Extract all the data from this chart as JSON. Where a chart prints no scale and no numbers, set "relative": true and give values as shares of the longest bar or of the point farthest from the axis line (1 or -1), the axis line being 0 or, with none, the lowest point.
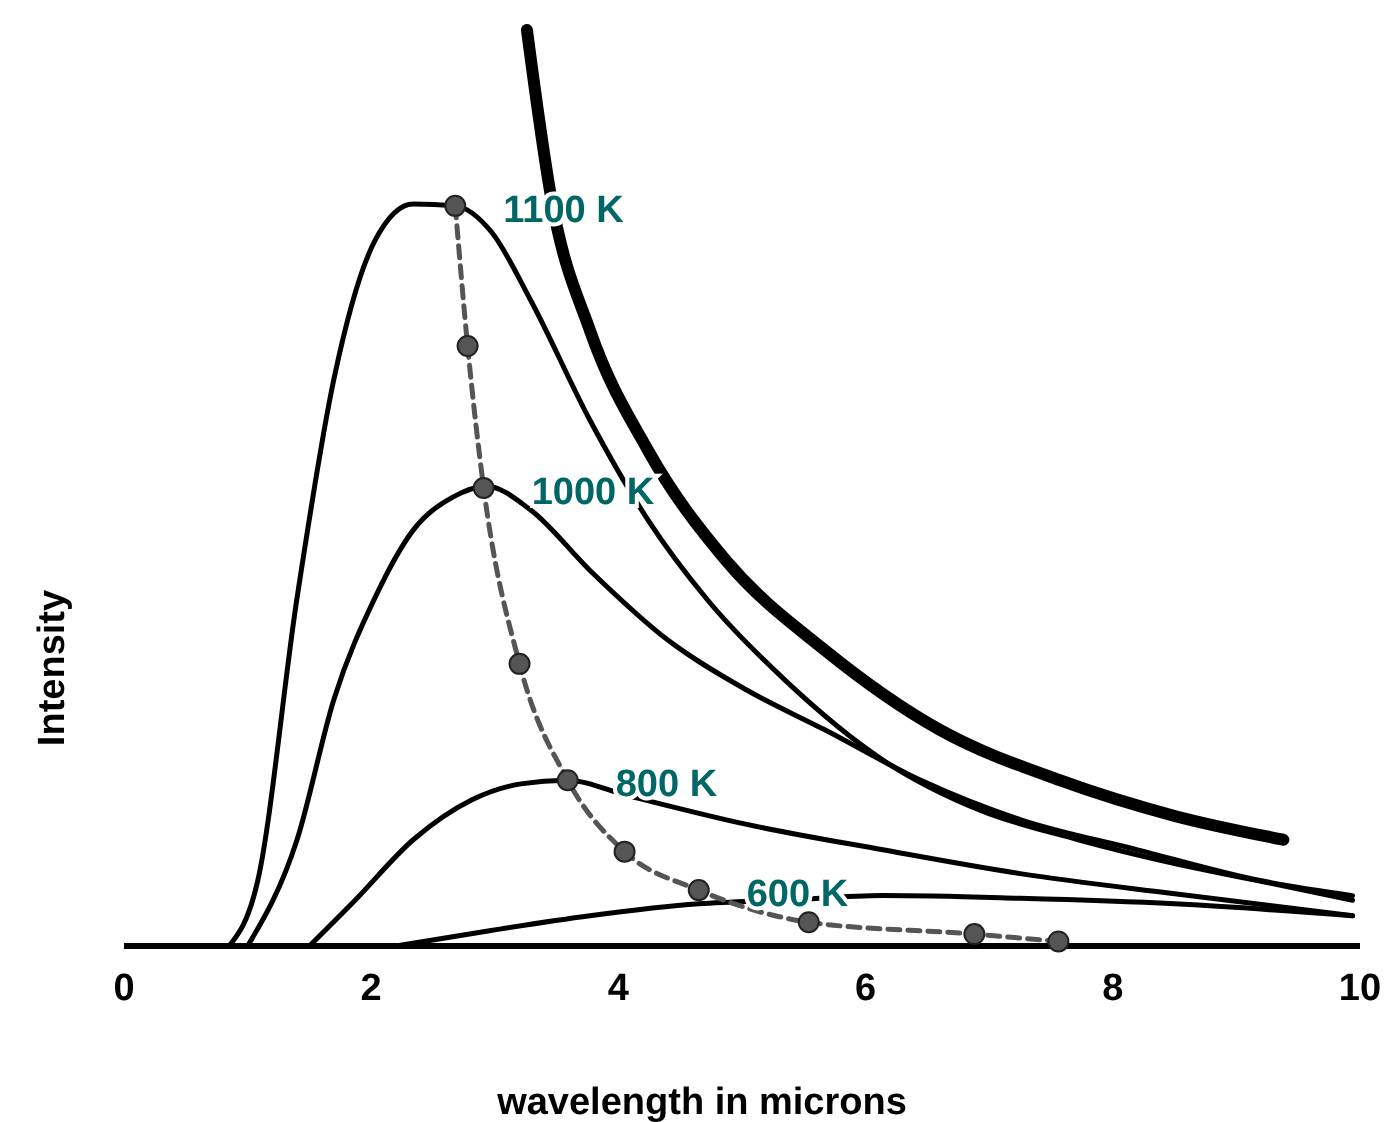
{
  "chart_data": {
    "type": "line",
    "relative": true,
    "xlabel": "wavelength in microns",
    "ylabel": "Intensity",
    "xlim": [
      0,
      10
    ],
    "xticks": [
      0,
      2,
      4,
      6,
      8,
      10
    ],
    "series": [
      {
        "name": "1100 K",
        "color": "#000000",
        "x": [
          0.85,
          1.08,
          1.4,
          1.7,
          2.03,
          2.34,
          2.68,
          2.97,
          3.29,
          3.77,
          4.24,
          4.72,
          5.35,
          6.14,
          6.93,
          7.72,
          8.5,
          9.3,
          9.94
        ],
        "values": [
          0,
          0.07,
          0.38,
          0.62,
          0.77,
          0.81,
          0.808,
          0.78,
          0.705,
          0.574,
          0.465,
          0.378,
          0.29,
          0.203,
          0.148,
          0.116,
          0.09,
          0.068,
          0.05
        ]
      },
      {
        "name": "1000 K",
        "color": "#000000",
        "x": [
          1.0,
          1.4,
          1.7,
          2.03,
          2.34,
          2.66,
          2.93,
          3.29,
          3.77,
          4.4,
          5.03,
          5.67,
          6.46,
          7.25,
          8.2,
          9.17,
          9.94
        ],
        "values": [
          0,
          0.116,
          0.27,
          0.38,
          0.454,
          0.49,
          0.502,
          0.476,
          0.41,
          0.334,
          0.28,
          0.236,
          0.18,
          0.138,
          0.105,
          0.072,
          0.055
        ]
      },
      {
        "name": "800 K",
        "color": "#000000",
        "x": [
          1.5,
          1.87,
          2.34,
          2.82,
          3.21,
          3.58,
          4.08,
          5.03,
          6.14,
          7.25,
          8.5,
          9.94
        ],
        "values": [
          0,
          0.05,
          0.116,
          0.16,
          0.177,
          0.181,
          0.164,
          0.133,
          0.105,
          0.079,
          0.057,
          0.033
        ]
      },
      {
        "name": "600 K",
        "color": "#000000",
        "x": [
          2.2,
          2.97,
          3.77,
          4.65,
          5.35,
          6.14,
          7.25,
          8.5,
          9.94
        ],
        "values": [
          0,
          0.017,
          0.033,
          0.046,
          0.05,
          0.055,
          0.052,
          0.046,
          0.033
        ]
      },
      {
        "color": "#000000",
        "x": [
          3.26,
          3.46,
          3.77,
          4.24,
          4.87,
          5.67,
          6.6,
          7.57,
          8.5,
          9.38
        ],
        "values": [
          1.0,
          0.814,
          0.672,
          0.541,
          0.421,
          0.323,
          0.236,
          0.181,
          0.142,
          0.116
        ]
      },
      {
        "color": "#555555",
        "marker": "circle",
        "line_style": "dashed",
        "x": [
          2.68,
          2.78,
          2.91,
          3.2,
          3.59,
          4.05,
          4.65,
          5.54,
          6.88,
          7.56
        ],
        "values": [
          0.808,
          0.655,
          0.5,
          0.308,
          0.181,
          0.103,
          0.061,
          0.026,
          0.013,
          0.005
        ]
      }
    ]
  }
}
